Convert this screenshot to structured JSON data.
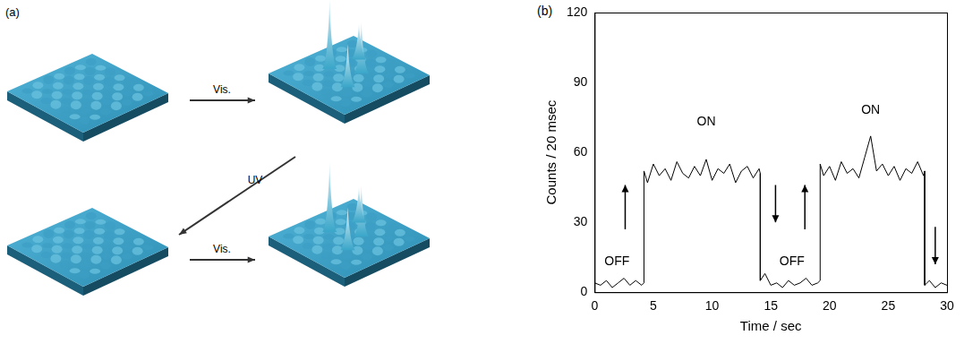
{
  "panel_a": {
    "label": "(a)",
    "arrow_labels": [
      "Vis.",
      "UV",
      "Vis."
    ]
  },
  "chart_data": {
    "type": "line",
    "panel_label": "(b)",
    "x_label": "Time / sec",
    "y_label": "Counts / 20 msec",
    "color": "#000000",
    "marker": "none",
    "line_style": "solid",
    "grid": false,
    "xlim": [
      0,
      30
    ],
    "xticks": [
      0,
      5,
      10,
      15,
      20,
      25,
      30
    ],
    "ylim": [
      0,
      120
    ],
    "yticks": [
      0,
      30,
      60,
      90,
      120
    ],
    "x": [
      0,
      0.5,
      1,
      1.5,
      2,
      2.5,
      3,
      3.5,
      4,
      4.2,
      4.2,
      4.5,
      5,
      5.5,
      6,
      6.5,
      7,
      7.5,
      8,
      8.5,
      9,
      9.5,
      10,
      10.5,
      11,
      11.5,
      12,
      12.5,
      13,
      13.5,
      14,
      14.1,
      14.1,
      14.5,
      15,
      15.5,
      16,
      16.5,
      17,
      17.5,
      18,
      18.5,
      19,
      19.2,
      19.2,
      19.5,
      20,
      20.5,
      21,
      21.5,
      22,
      22.5,
      23,
      23.5,
      24,
      24.5,
      25,
      25.5,
      26,
      26.5,
      27,
      27.5,
      28,
      28.1,
      28.1,
      28.5,
      29,
      29.5,
      30
    ],
    "values": [
      4,
      3,
      5,
      2,
      4,
      6,
      3,
      5,
      3,
      4,
      52,
      47,
      55,
      50,
      53,
      48,
      56,
      51,
      49,
      54,
      50,
      57,
      48,
      53,
      51,
      55,
      47,
      52,
      54,
      49,
      53,
      51,
      5,
      8,
      3,
      4,
      2,
      5,
      3,
      4,
      6,
      3,
      4,
      5,
      55,
      50,
      54,
      48,
      56,
      51,
      53,
      49,
      58,
      67,
      52,
      55,
      50,
      54,
      48,
      53,
      51,
      56,
      50,
      52,
      3,
      5,
      2,
      4,
      3
    ],
    "annotations": [
      {
        "text": "OFF",
        "x": 1.9,
        "y": 13
      },
      {
        "text": "ON",
        "x": 9.5,
        "y": 73
      },
      {
        "text": "OFF",
        "x": 16.8,
        "y": 13
      },
      {
        "text": "ON",
        "x": 23.5,
        "y": 78
      }
    ],
    "arrows": [
      {
        "x": 2.6,
        "y_from": 27,
        "y_to": 46
      },
      {
        "x": 15.4,
        "y_from": 46,
        "y_to": 30
      },
      {
        "x": 17.9,
        "y_from": 27,
        "y_to": 46
      },
      {
        "x": 29.0,
        "y_from": 28,
        "y_to": 12
      }
    ]
  }
}
